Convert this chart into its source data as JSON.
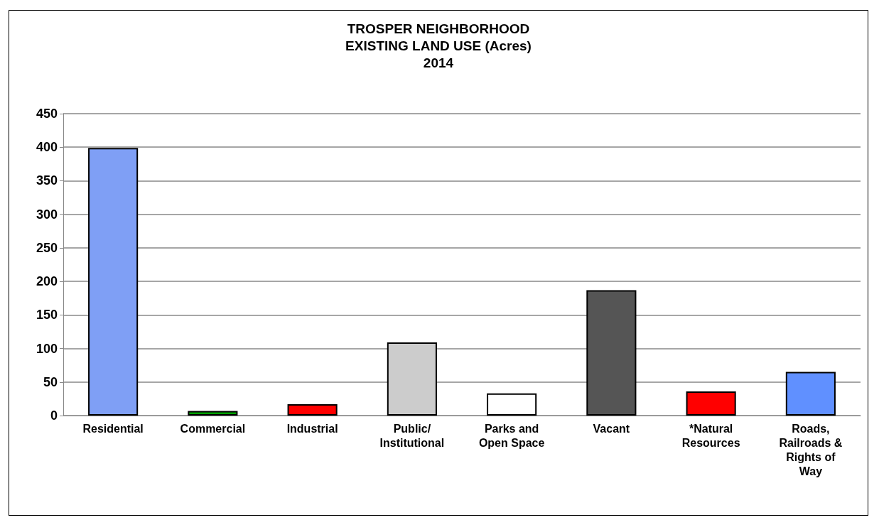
{
  "chart_data": {
    "type": "bar",
    "title": "TROSPER NEIGHBORHOOD\nEXISTING LAND USE (Acres)\n2014",
    "categories": [
      "Residential",
      "Commercial",
      "Industrial",
      "Public/\nInstitutional",
      "Parks and\nOpen Space",
      "Vacant",
      "*Natural\nResources",
      "Roads,\nRailroads &\nRights of\nWay"
    ],
    "values": [
      399,
      7,
      17,
      109,
      33,
      187,
      36,
      65
    ],
    "colors": [
      "#7f9ff5",
      "#00a000",
      "#ff0000",
      "#cccccc",
      "#ffffff",
      "#555555",
      "#ff0000",
      "#6090ff"
    ],
    "ylim": [
      0,
      450
    ],
    "yticks": [
      0,
      50,
      100,
      150,
      200,
      250,
      300,
      350,
      400,
      450
    ],
    "grid": "y"
  }
}
